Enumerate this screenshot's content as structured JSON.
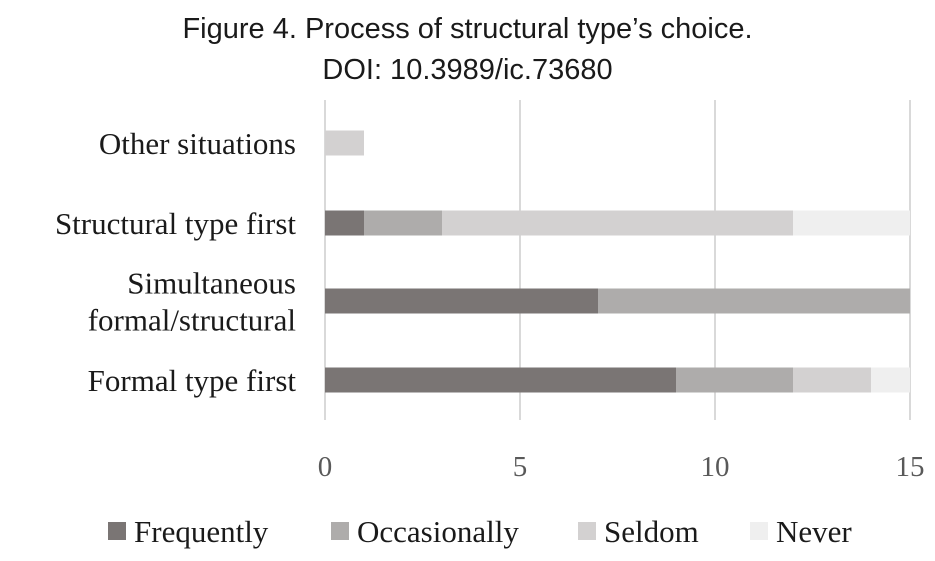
{
  "chart_data": {
    "type": "bar",
    "orientation": "horizontal",
    "stacked": true,
    "title": "Figure 4. Process of structural type’s choice.",
    "subtitle": "DOI: 10.3989/ic.73680",
    "categories": [
      [
        "Other situations"
      ],
      [
        "Structural type first"
      ],
      [
        "Simultaneous",
        "formal/structural"
      ],
      [
        "Formal type first"
      ]
    ],
    "series": [
      {
        "name": "Frequently",
        "color": "#7a7574",
        "values": [
          0,
          1,
          7,
          9
        ]
      },
      {
        "name": "Occasionally",
        "color": "#aeacab",
        "values": [
          0,
          2,
          8,
          3
        ]
      },
      {
        "name": "Seldom",
        "color": "#d3d1d1",
        "values": [
          1,
          9,
          0,
          2
        ]
      },
      {
        "name": "Never",
        "color": "#efefef",
        "values": [
          0,
          3,
          0,
          1
        ]
      }
    ],
    "xlim": [
      0,
      15
    ],
    "xticks": [
      "0",
      "5",
      "10",
      "15"
    ],
    "grid": true,
    "legend": "bottom"
  }
}
